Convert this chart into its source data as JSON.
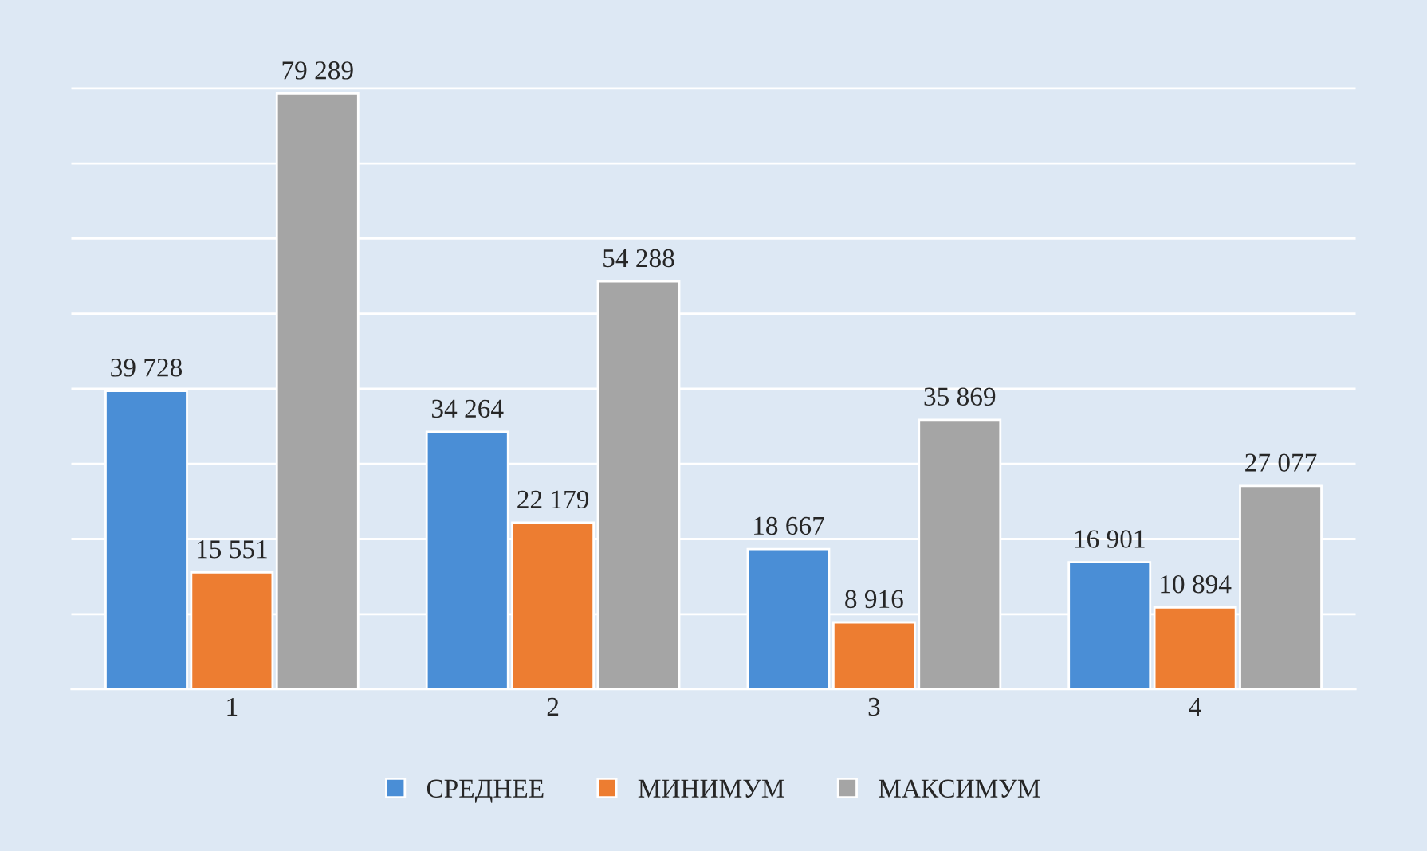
{
  "chart_data": {
    "type": "bar",
    "categories": [
      "1",
      "2",
      "3",
      "4"
    ],
    "series": [
      {
        "name": "СРЕДНЕЕ",
        "color": "#4a8ed6",
        "values": [
          39728,
          34264,
          18667,
          16901
        ],
        "value_labels": [
          "39 728",
          "34 264",
          "18 667",
          "16 901"
        ]
      },
      {
        "name": "МИНИМУМ",
        "color": "#ed7d31",
        "values": [
          15551,
          22179,
          8916,
          10894
        ],
        "value_labels": [
          "15 551",
          "22 179",
          "8 916",
          "10 894"
        ]
      },
      {
        "name": "МАКСИМУМ",
        "color": "#a5a5a5",
        "values": [
          79289,
          54288,
          35869,
          27077
        ],
        "value_labels": [
          "79 289",
          "54 288",
          "35 869",
          "27 077"
        ]
      }
    ],
    "grid": "y",
    "legend": "bottom",
    "tick_labels": "x"
  }
}
